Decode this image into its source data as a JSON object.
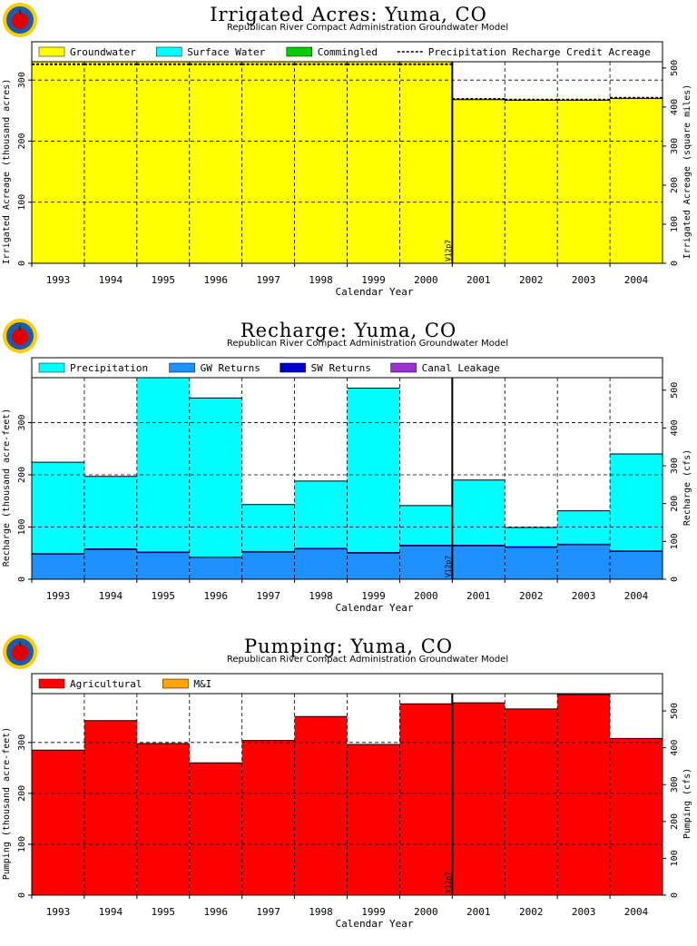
{
  "chart_data": [
    {
      "type": "bar",
      "title": "Irrigated Acres: Yuma, CO",
      "subtitle": "Republican River Compact Administration Groundwater Model",
      "xlabel": "Calendar Year",
      "ylabel": "Irrigated Acreage (thousand acres)",
      "ylabel_right": "Irrigated Acreage (square miles)",
      "categories": [
        "1993",
        "1994",
        "1995",
        "1996",
        "1997",
        "1998",
        "1999",
        "2000",
        "2001",
        "2002",
        "2003",
        "2004"
      ],
      "ylim": [
        0,
        330
      ],
      "ylim_right": [
        0,
        516
      ],
      "yticks": [
        0,
        100,
        200,
        300
      ],
      "yticks_right": [
        0,
        100,
        200,
        300,
        400,
        500
      ],
      "series": [
        {
          "name": "Groundwater",
          "color": "#ffff00",
          "values": [
            331,
            331,
            331,
            331,
            331,
            331,
            331,
            331,
            268,
            267,
            267,
            270
          ]
        },
        {
          "name": "Surface Water",
          "color": "#00ffff",
          "values": [
            0,
            0,
            0,
            0,
            0,
            0,
            0,
            0,
            0,
            0,
            0,
            0
          ]
        },
        {
          "name": "Commingled",
          "color": "#00cc00",
          "values": [
            0,
            0,
            0,
            0,
            0,
            0,
            0,
            0,
            0,
            0,
            0,
            0
          ]
        }
      ],
      "dashed_line": {
        "name": "Precipitation Recharge Credit Acreage",
        "values": [
          326,
          326,
          326,
          326,
          326,
          326,
          326,
          326,
          269,
          268,
          268,
          271
        ]
      },
      "marker": {
        "label": "V12p7",
        "position": "between 2000 and 2001"
      },
      "legend_placement": "top",
      "grid": true
    },
    {
      "type": "bar",
      "title": "Recharge: Yuma, CO",
      "subtitle": "Republican River Compact Administration Groundwater Model",
      "xlabel": "Calendar Year",
      "ylabel": "Recharge (thousand acre-feet)",
      "ylabel_right": "Recharge (cfs)",
      "categories": [
        "1993",
        "1994",
        "1995",
        "1996",
        "1997",
        "1998",
        "1999",
        "2000",
        "2001",
        "2002",
        "2003",
        "2004"
      ],
      "ylim": [
        0,
        386
      ],
      "ylim_right": [
        0,
        533
      ],
      "yticks": [
        0,
        100,
        200,
        300
      ],
      "yticks_right": [
        0,
        100,
        200,
        300,
        400,
        500
      ],
      "series": [
        {
          "name": "GW Returns",
          "color": "#1e90ff",
          "values": [
            48,
            57,
            51,
            42,
            52,
            58,
            50,
            64,
            64,
            61,
            66,
            53
          ]
        },
        {
          "name": "SW Returns",
          "color": "#0000cc",
          "values": [
            2,
            2,
            2,
            1,
            2,
            2,
            2,
            2,
            2,
            2,
            2,
            2
          ]
        },
        {
          "name": "Canal Leakage",
          "color": "#9932cc",
          "values": [
            0,
            0,
            0,
            0,
            0,
            0,
            0,
            0,
            0,
            0,
            0,
            0
          ]
        },
        {
          "name": "Precipitation",
          "color": "#00ffff",
          "values": [
            174,
            138,
            333,
            304,
            89,
            128,
            314,
            75,
            124,
            36,
            63,
            185
          ]
        }
      ],
      "marker": {
        "label": "V12p7",
        "position": "between 2000 and 2001"
      },
      "legend_placement": "top",
      "grid": true
    },
    {
      "type": "bar",
      "title": "Pumping: Yuma, CO",
      "subtitle": "Republican River Compact Administration Groundwater Model",
      "xlabel": "Calendar Year",
      "ylabel": "Pumping (thousand acre-feet)",
      "ylabel_right": "Pumping (cfs)",
      "categories": [
        "1993",
        "1994",
        "1995",
        "1996",
        "1997",
        "1998",
        "1999",
        "2000",
        "2001",
        "2002",
        "2003",
        "2004"
      ],
      "ylim": [
        0,
        396
      ],
      "ylim_right": [
        0,
        547
      ],
      "yticks": [
        0,
        100,
        200,
        300
      ],
      "yticks_right": [
        0,
        100,
        200,
        300,
        400,
        500
      ],
      "series": [
        {
          "name": "Agricultural",
          "color": "#ff0000",
          "values": [
            285,
            343,
            298,
            260,
            304,
            351,
            296,
            376,
            378,
            366,
            394,
            308
          ]
        },
        {
          "name": "M&I",
          "color": "#ffa500",
          "values": [
            0,
            0,
            0,
            0,
            0,
            0,
            0,
            0,
            0,
            0,
            0,
            0
          ]
        }
      ],
      "marker": {
        "label": "V12p7",
        "position": "between 2000 and 2001"
      },
      "legend_placement": "top",
      "grid": true
    }
  ]
}
